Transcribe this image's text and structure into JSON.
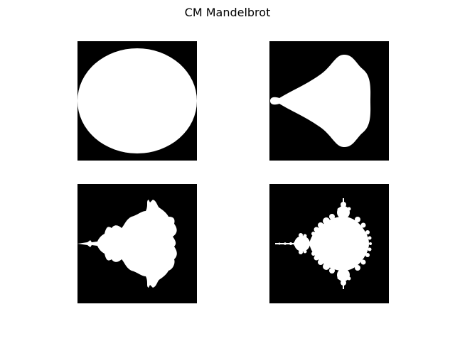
{
  "figure": {
    "title": "CM Mandelbrot"
  },
  "colors": {
    "background": "#ffffff",
    "panel_fill": "#000000",
    "set_fill": "#ffffff",
    "title_text": "#000000"
  },
  "panels": [
    {
      "name": "circle-shape"
    },
    {
      "name": "teardrop-shape"
    },
    {
      "name": "rough-fractal-shape"
    },
    {
      "name": "mandelbrot-set"
    }
  ]
}
